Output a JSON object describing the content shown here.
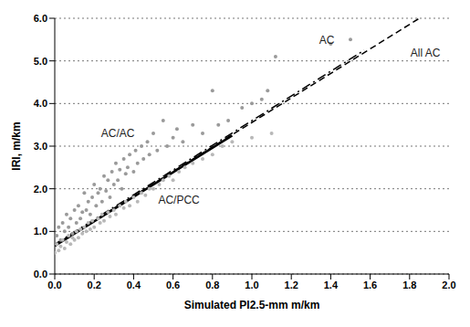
{
  "chart_data": {
    "type": "scatter",
    "x_label": "Simulated PI2.5-mm m/km",
    "y_label": "IRI, m/km",
    "xlim": [
      0,
      2
    ],
    "ylim": [
      0,
      6
    ],
    "xticks": [
      {
        "value": 0,
        "label": "0.0"
      },
      0.2,
      0.4,
      0.6,
      0.8,
      {
        "value": 1,
        "label": "1.0"
      },
      1.2,
      1.4,
      1.6,
      1.8,
      {
        "value": 2,
        "label": "2.0"
      }
    ],
    "yticks": [
      {
        "value": 0,
        "label": "0.0"
      },
      {
        "value": 1,
        "label": "1.0"
      },
      {
        "value": 2,
        "label": "2.0"
      },
      {
        "value": 3,
        "label": "3.0"
      },
      {
        "value": 4,
        "label": "4.0"
      },
      {
        "value": 5,
        "label": "5.0"
      },
      {
        "value": 6,
        "label": "6.0"
      }
    ],
    "grid": true,
    "series": [
      {
        "name": "AC/AC",
        "type": "scatter",
        "color": "#9a9a9a",
        "marker": "circle",
        "x": [
          0.01,
          0.02,
          0.03,
          0.04,
          0.05,
          0.06,
          0.07,
          0.08,
          0.09,
          0.1,
          0.11,
          0.12,
          0.13,
          0.14,
          0.15,
          0.16,
          0.17,
          0.18,
          0.19,
          0.2,
          0.21,
          0.22,
          0.23,
          0.24,
          0.25,
          0.26,
          0.27,
          0.28,
          0.29,
          0.3,
          0.31,
          0.32,
          0.33,
          0.34,
          0.35,
          0.36,
          0.37,
          0.38,
          0.4,
          0.41,
          0.42,
          0.44,
          0.45,
          0.47,
          0.48,
          0.5,
          0.52,
          0.55,
          0.57,
          0.6,
          0.62,
          0.65,
          0.7,
          0.75,
          0.8,
          0.83,
          0.88,
          0.95,
          1.0,
          1.05,
          1.08,
          1.12,
          1.4,
          1.5
        ],
        "values": [
          0.9,
          1.1,
          0.8,
          1.2,
          1.0,
          1.4,
          1.1,
          1.3,
          0.95,
          1.5,
          1.2,
          1.6,
          1.3,
          1.45,
          1.9,
          1.5,
          1.7,
          1.4,
          1.8,
          2.1,
          1.6,
          1.9,
          2.0,
          1.7,
          2.3,
          1.95,
          2.2,
          1.8,
          2.4,
          2.1,
          2.6,
          2.2,
          2.45,
          2.0,
          2.7,
          2.35,
          2.5,
          2.8,
          2.4,
          2.9,
          2.6,
          3.0,
          2.7,
          3.1,
          2.8,
          3.3,
          2.9,
          3.6,
          3.0,
          3.2,
          3.4,
          3.1,
          3.5,
          3.3,
          4.3,
          3.5,
          3.6,
          3.9,
          4.0,
          4.1,
          4.3,
          5.1,
          5.4,
          5.5
        ]
      },
      {
        "name": "AC/PCC",
        "type": "scatter",
        "color": "#b8b8b8",
        "marker": "circle",
        "x": [
          0.0,
          0.01,
          0.02,
          0.03,
          0.04,
          0.05,
          0.06,
          0.07,
          0.08,
          0.09,
          0.1,
          0.11,
          0.12,
          0.13,
          0.14,
          0.15,
          0.16,
          0.17,
          0.18,
          0.19,
          0.2,
          0.22,
          0.23,
          0.24,
          0.25,
          0.27,
          0.28,
          0.3,
          0.31,
          0.33,
          0.35,
          0.36,
          0.38,
          0.4,
          0.42,
          0.44,
          0.46,
          0.48,
          0.5,
          0.53,
          0.55,
          0.58,
          0.6,
          0.63,
          0.66,
          0.7,
          0.75,
          0.8,
          0.85,
          0.9,
          1.0,
          1.1
        ],
        "values": [
          0.5,
          0.7,
          0.55,
          0.65,
          0.8,
          0.6,
          0.75,
          0.9,
          0.7,
          0.85,
          0.8,
          1.0,
          0.85,
          1.05,
          0.95,
          1.1,
          1.0,
          1.2,
          1.05,
          1.25,
          1.1,
          1.3,
          1.2,
          1.4,
          1.25,
          1.45,
          1.35,
          1.5,
          1.4,
          1.6,
          1.55,
          1.7,
          1.6,
          1.8,
          1.7,
          1.9,
          1.85,
          2.0,
          2.0,
          2.1,
          2.2,
          2.3,
          2.2,
          2.4,
          2.5,
          2.6,
          2.7,
          2.8,
          3.0,
          3.1,
          3.2,
          3.3
        ]
      },
      {
        "name": "All AC",
        "type": "line",
        "color": "#000000",
        "line_style": "dashed",
        "x": [
          0,
          1.85
        ],
        "values": [
          0.68,
          6.0
        ]
      },
      {
        "name": "AC",
        "type": "line",
        "color": "#000000",
        "line_style": "dashdot",
        "x": [
          0,
          1.57
        ],
        "values": [
          0.7,
          5.25
        ]
      },
      {
        "name": "AC/AC",
        "type": "line",
        "color": "#000000",
        "line_style": "solid",
        "x": [
          0,
          0.9
        ],
        "values": [
          0.66,
          3.25
        ]
      }
    ],
    "annotations": [
      {
        "text": "AC/AC",
        "x": 0.32,
        "y": 3.3
      },
      {
        "text": "AC/PCC",
        "x": 0.63,
        "y": 1.75
      },
      {
        "text": "AC",
        "x": 1.38,
        "y": 5.5
      },
      {
        "text": "All AC",
        "x": 1.88,
        "y": 5.2
      }
    ]
  }
}
